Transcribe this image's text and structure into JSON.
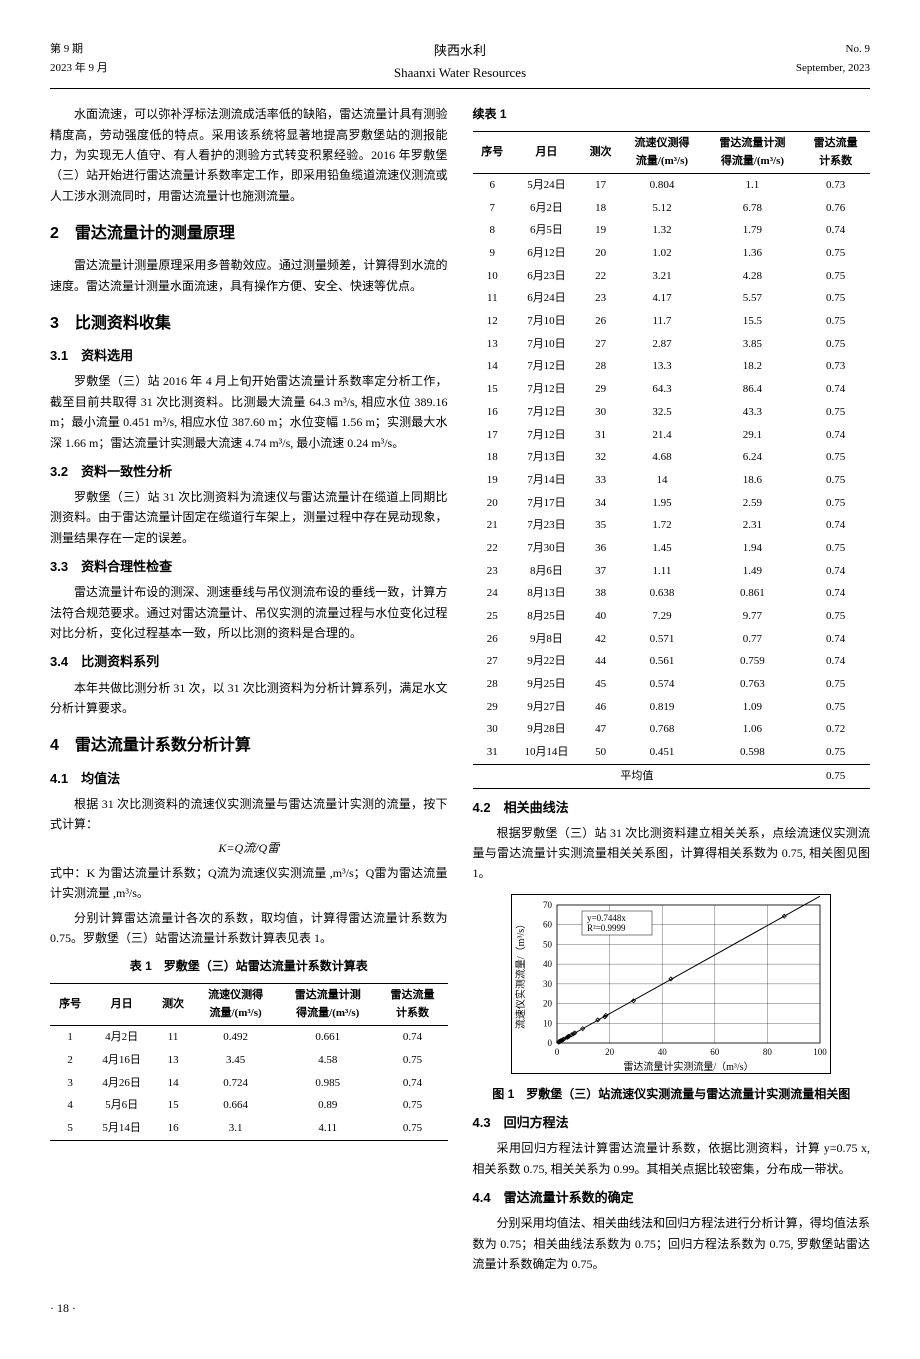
{
  "header": {
    "issue_cn": "第 9 期",
    "date_cn": "2023 年 9 月",
    "journal_cn": "陕西水利",
    "journal_en": "Shaanxi Water Resources",
    "issue_en": "No. 9",
    "date_en": "September, 2023"
  },
  "left": {
    "intro": "水面流速，可以弥补浮标法测流成活率低的缺陷，雷达流量计具有测验精度高，劳动强度低的特点。采用该系统将显著地提高罗敷堡站的测报能力，为实现无人值守、有人看护的测验方式转变积累经验。2016 年罗敷堡（三）站开始进行雷达流量计系数率定工作，即采用铅鱼缆道流速仪测流或人工涉水测流同时，用雷达流量计也施测流量。",
    "s2_title": "2　雷达流量计的测量原理",
    "s2_body": "雷达流量计测量原理采用多普勒效应。通过测量频差，计算得到水流的速度。雷达流量计测量水面流速，具有操作方便、安全、快速等优点。",
    "s3_title": "3　比测资料收集",
    "s31_title": "3.1　资料选用",
    "s31_body": "罗敷堡（三）站 2016 年 4 月上旬开始雷达流量计系数率定分析工作，截至目前共取得 31 次比测资料。比测最大流量 64.3 m³/s, 相应水位 389.16 m；最小流量 0.451 m³/s, 相应水位 387.60 m；水位变幅 1.56 m；实测最大水深 1.66 m；雷达流量计实测最大流速 4.74 m³/s, 最小流速 0.24 m³/s。",
    "s32_title": "3.2　资料一致性分析",
    "s32_body": "罗敷堡（三）站 31 次比测资料为流速仪与雷达流量计在缆道上同期比测资料。由于雷达流量计固定在缆道行车架上，测量过程中存在晃动现象，测量结果存在一定的误差。",
    "s33_title": "3.3　资料合理性检查",
    "s33_body": "雷达流量计布设的测深、测速垂线与吊仪测流布设的垂线一致，计算方法符合规范要求。通过对雷达流量计、吊仪实测的流量过程与水位变化过程对比分析，变化过程基本一致，所以比测的资料是合理的。",
    "s34_title": "3.4　比测资料系列",
    "s34_body": "本年共做比测分析 31 次，以 31 次比测资料为分析计算系列，满足水文分析计算要求。",
    "s4_title": "4　雷达流量计系数分析计算",
    "s41_title": "4.1　均值法",
    "s41_body1": "根据 31 次比测资料的流速仪实测流量与雷达流量计实测的流量，按下式计算：",
    "s41_formula": "K=Q流/Q雷",
    "s41_body2": "式中：K 为雷达流量计系数；Q流为流速仪实测流量 ,m³/s；Q雷为雷达流量计实测流量 ,m³/s。",
    "s41_body3": "分别计算雷达流量计各次的系数，取均值，计算得雷达流量计系数为 0.75。罗敷堡（三）站雷达流量计系数计算表见表 1。",
    "table1_title": "表 1　罗敷堡（三）站雷达流量计系数计算表"
  },
  "right": {
    "table1_cont_label": "续表 1",
    "s42_title": "4.2　相关曲线法",
    "s42_body": "根据罗敷堡（三）站 31 次比测资料建立相关关系，点绘流速仪实测流量与雷达流量计实测流量相关关系图，计算得相关系数为 0.75, 相关图见图 1。",
    "fig1_caption": "图 1　罗敷堡（三）站流速仪实测流量与雷达流量计实测流量相关图",
    "s43_title": "4.3　回归方程法",
    "s43_body": "采用回归方程法计算雷达流量计系数，依据比测资料，计算 y=0.75 x, 相关系数 0.75, 相关关系为 0.99。其相关点据比较密集，分布成一带状。",
    "s44_title": "4.4　雷达流量计系数的确定",
    "s44_body": "分别采用均值法、相关曲线法和回归方程法进行分析计算，得均值法系数为 0.75；相关曲线法系数为 0.75；回归方程法系数为 0.75, 罗敷堡站雷达流量计系数确定为 0.75。"
  },
  "table_headers": {
    "h1": "序号",
    "h2": "月日",
    "h3": "测次",
    "h4a": "流速仪测得",
    "h4b": "流量/(m³/s)",
    "h5a": "雷达流量计测",
    "h5b": "得流量/(m³/s)",
    "h6a": "雷达流量",
    "h6b": "计系数"
  },
  "table1_rows": [
    [
      "1",
      "4月2日",
      "11",
      "0.492",
      "0.661",
      "0.74"
    ],
    [
      "2",
      "4月16日",
      "13",
      "3.45",
      "4.58",
      "0.75"
    ],
    [
      "3",
      "4月26日",
      "14",
      "0.724",
      "0.985",
      "0.74"
    ],
    [
      "4",
      "5月6日",
      "15",
      "0.664",
      "0.89",
      "0.75"
    ],
    [
      "5",
      "5月14日",
      "16",
      "3.1",
      "4.11",
      "0.75"
    ]
  ],
  "table1_cont_rows": [
    [
      "6",
      "5月24日",
      "17",
      "0.804",
      "1.1",
      "0.73"
    ],
    [
      "7",
      "6月2日",
      "18",
      "5.12",
      "6.78",
      "0.76"
    ],
    [
      "8",
      "6月5日",
      "19",
      "1.32",
      "1.79",
      "0.74"
    ],
    [
      "9",
      "6月12日",
      "20",
      "1.02",
      "1.36",
      "0.75"
    ],
    [
      "10",
      "6月23日",
      "22",
      "3.21",
      "4.28",
      "0.75"
    ],
    [
      "11",
      "6月24日",
      "23",
      "4.17",
      "5.57",
      "0.75"
    ],
    [
      "12",
      "7月10日",
      "26",
      "11.7",
      "15.5",
      "0.75"
    ],
    [
      "13",
      "7月10日",
      "27",
      "2.87",
      "3.85",
      "0.75"
    ],
    [
      "14",
      "7月12日",
      "28",
      "13.3",
      "18.2",
      "0.73"
    ],
    [
      "15",
      "7月12日",
      "29",
      "64.3",
      "86.4",
      "0.74"
    ],
    [
      "16",
      "7月12日",
      "30",
      "32.5",
      "43.3",
      "0.75"
    ],
    [
      "17",
      "7月12日",
      "31",
      "21.4",
      "29.1",
      "0.74"
    ],
    [
      "18",
      "7月13日",
      "32",
      "4.68",
      "6.24",
      "0.75"
    ],
    [
      "19",
      "7月14日",
      "33",
      "14",
      "18.6",
      "0.75"
    ],
    [
      "20",
      "7月17日",
      "34",
      "1.95",
      "2.59",
      "0.75"
    ],
    [
      "21",
      "7月23日",
      "35",
      "1.72",
      "2.31",
      "0.74"
    ],
    [
      "22",
      "7月30日",
      "36",
      "1.45",
      "1.94",
      "0.75"
    ],
    [
      "23",
      "8月6日",
      "37",
      "1.11",
      "1.49",
      "0.74"
    ],
    [
      "24",
      "8月13日",
      "38",
      "0.638",
      "0.861",
      "0.74"
    ],
    [
      "25",
      "8月25日",
      "40",
      "7.29",
      "9.77",
      "0.75"
    ],
    [
      "26",
      "9月8日",
      "42",
      "0.571",
      "0.77",
      "0.74"
    ],
    [
      "27",
      "9月22日",
      "44",
      "0.561",
      "0.759",
      "0.74"
    ],
    [
      "28",
      "9月25日",
      "45",
      "0.574",
      "0.763",
      "0.75"
    ],
    [
      "29",
      "9月27日",
      "46",
      "0.819",
      "1.09",
      "0.75"
    ],
    [
      "30",
      "9月28日",
      "47",
      "0.768",
      "1.06",
      "0.72"
    ],
    [
      "31",
      "10月14日",
      "50",
      "0.451",
      "0.598",
      "0.75"
    ]
  ],
  "table1_avg": {
    "label": "平均值",
    "value": "0.75"
  },
  "chart": {
    "eq1": "y=0.7448x",
    "eq2": "R²=0.9999",
    "ylabel": "流速仪实测流量/（m³/s）",
    "xlabel": "雷达流量计实测流量/（m³/s）",
    "xlim": [
      0,
      100
    ],
    "xtick_step": 20,
    "ylim": [
      0,
      70
    ],
    "ytick_step": 10,
    "xticks": [
      0,
      20,
      40,
      60,
      80,
      100
    ],
    "yticks": [
      0,
      10,
      20,
      30,
      40,
      50,
      60,
      70
    ],
    "marker_color": "#000000",
    "line_color": "#000000",
    "grid_color": "#000000",
    "background_color": "#ffffff",
    "points": [
      [
        0.661,
        0.492
      ],
      [
        4.58,
        3.45
      ],
      [
        0.985,
        0.724
      ],
      [
        0.89,
        0.664
      ],
      [
        4.11,
        3.1
      ],
      [
        1.1,
        0.804
      ],
      [
        6.78,
        5.12
      ],
      [
        1.79,
        1.32
      ],
      [
        1.36,
        1.02
      ],
      [
        4.28,
        3.21
      ],
      [
        5.57,
        4.17
      ],
      [
        15.5,
        11.7
      ],
      [
        3.85,
        2.87
      ],
      [
        18.2,
        13.3
      ],
      [
        86.4,
        64.3
      ],
      [
        43.3,
        32.5
      ],
      [
        29.1,
        21.4
      ],
      [
        6.24,
        4.68
      ],
      [
        18.6,
        14
      ],
      [
        2.59,
        1.95
      ],
      [
        2.31,
        1.72
      ],
      [
        1.94,
        1.45
      ],
      [
        1.49,
        1.11
      ],
      [
        0.861,
        0.638
      ],
      [
        9.77,
        7.29
      ],
      [
        0.77,
        0.571
      ],
      [
        0.759,
        0.561
      ],
      [
        0.763,
        0.574
      ],
      [
        1.09,
        0.819
      ],
      [
        1.06,
        0.768
      ],
      [
        0.598,
        0.451
      ]
    ]
  },
  "page_num": "· 18 ·"
}
